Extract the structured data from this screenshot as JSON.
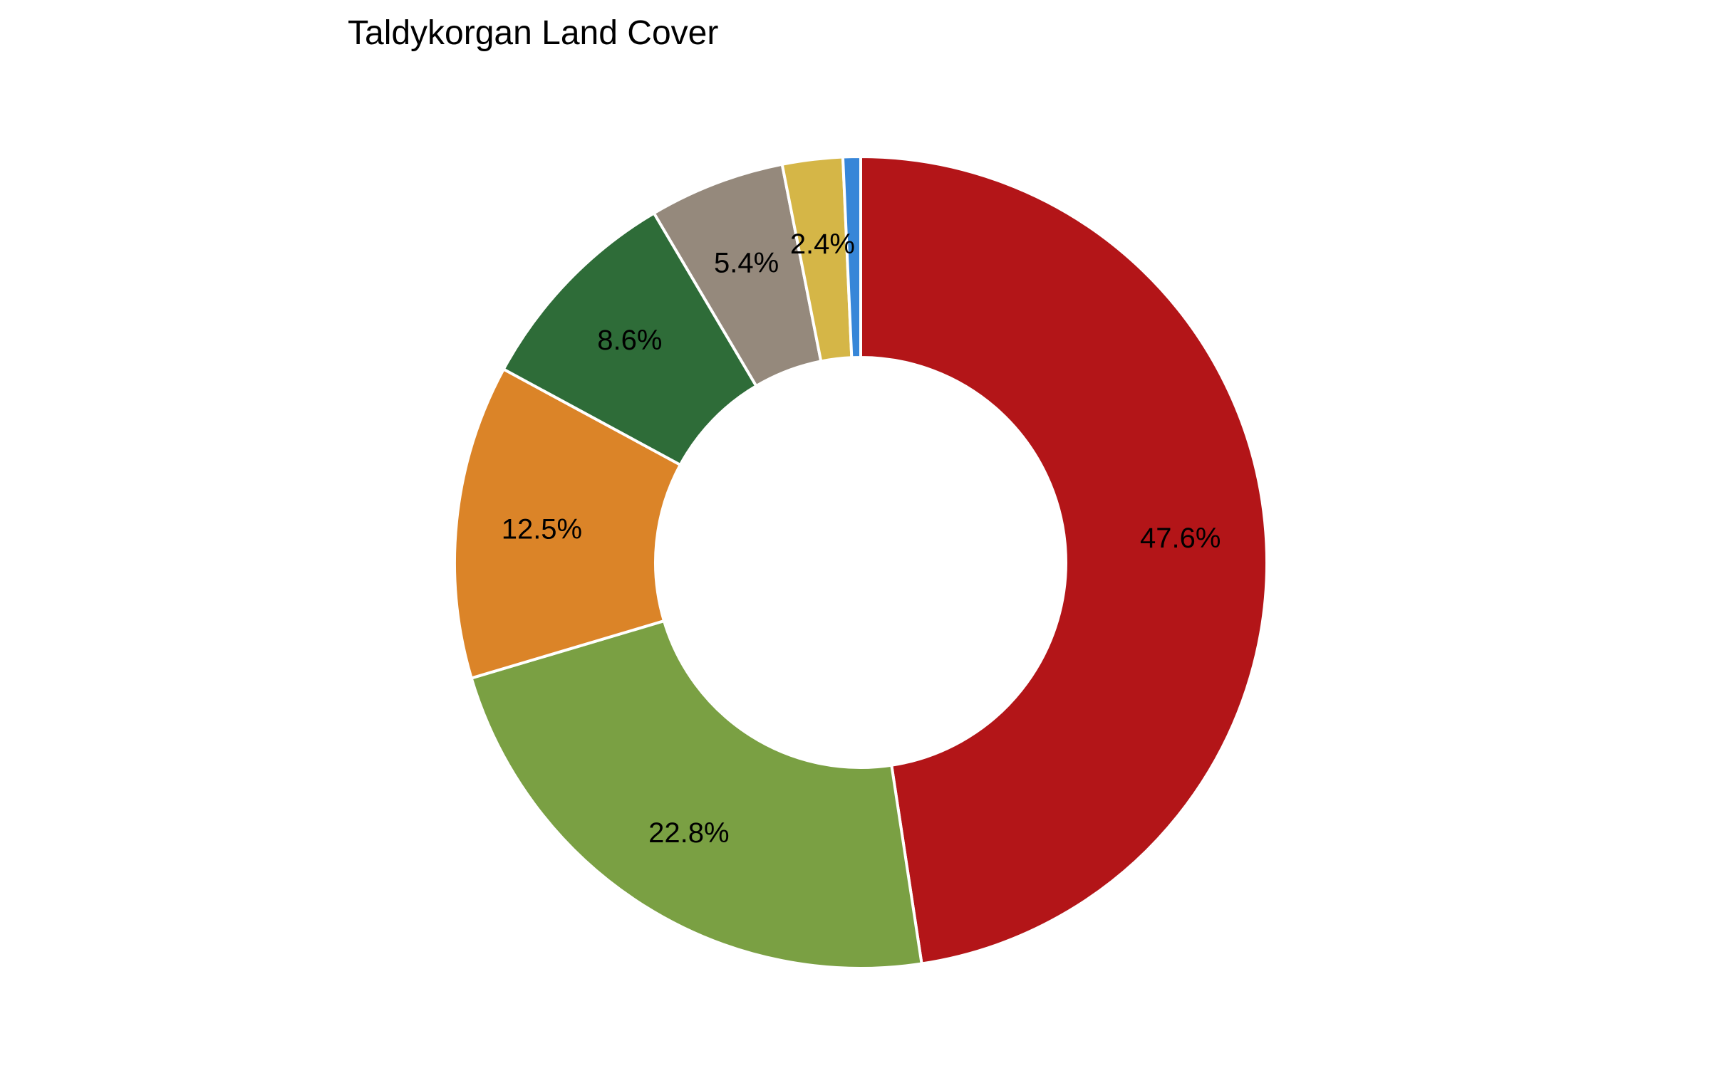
{
  "chart_data": {
    "type": "pie",
    "style": "donut",
    "title": "Taldykorgan Land Cover",
    "slices": [
      {
        "value": 47.6,
        "label": "47.6%",
        "color": "#B31518"
      },
      {
        "value": 22.8,
        "label": "22.8%",
        "color": "#7AA043"
      },
      {
        "value": 12.5,
        "label": "12.5%",
        "color": "#DB8428"
      },
      {
        "value": 8.6,
        "label": "8.6%",
        "color": "#2E6C38"
      },
      {
        "value": 5.4,
        "label": "5.4%",
        "color": "#95897C"
      },
      {
        "value": 2.4,
        "label": "2.4%",
        "color": "#D5B647"
      },
      {
        "value": 0.7,
        "label": "",
        "color": "#3786D8"
      }
    ],
    "start_angle_deg": 90,
    "direction": "clockwise",
    "legend": "none"
  }
}
